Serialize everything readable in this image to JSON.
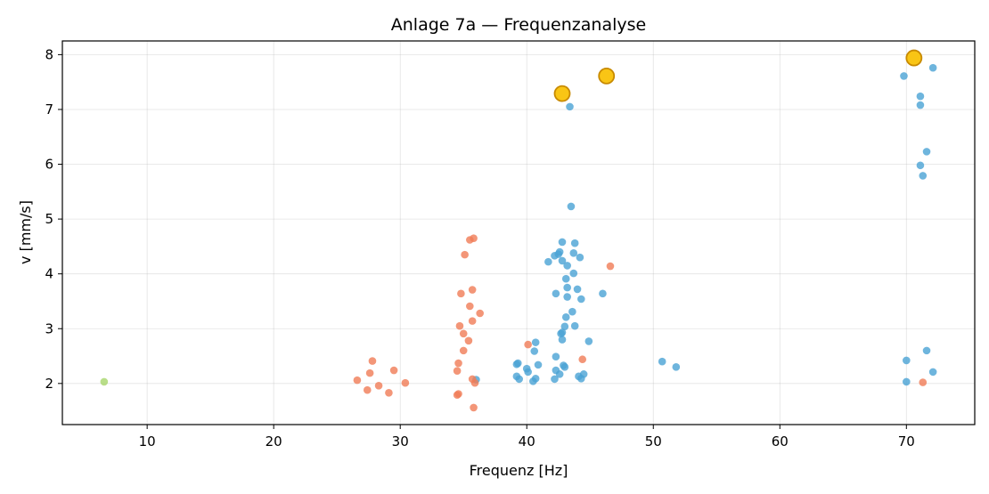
{
  "chart_data": {
    "type": "scatter",
    "title": "Anlage 7a — Frequenzanalyse",
    "xlabel": "Frequenz [Hz]",
    "ylabel": "v [mm/s]",
    "xlim": [
      3.3,
      75.4
    ],
    "ylim": [
      1.25,
      8.25
    ],
    "xticks": [
      10,
      20,
      30,
      40,
      50,
      60,
      70
    ],
    "yticks": [
      2,
      3,
      4,
      5,
      6,
      7,
      8
    ],
    "grid": true,
    "legend": "none",
    "series": [
      {
        "color": "#4aa3d4",
        "points": [
          [
            43.4,
            7.05
          ],
          [
            43.5,
            5.23
          ],
          [
            42.8,
            4.58
          ],
          [
            43.8,
            4.56
          ],
          [
            42.2,
            4.33
          ],
          [
            42.6,
            4.4
          ],
          [
            43.7,
            4.38
          ],
          [
            42.5,
            4.36
          ],
          [
            41.7,
            4.22
          ],
          [
            42.8,
            4.24
          ],
          [
            43.2,
            4.15
          ],
          [
            44.2,
            4.3
          ],
          [
            43.7,
            4.01
          ],
          [
            43.1,
            3.91
          ],
          [
            43.2,
            3.75
          ],
          [
            44.0,
            3.72
          ],
          [
            42.3,
            3.64
          ],
          [
            43.2,
            3.58
          ],
          [
            44.3,
            3.54
          ],
          [
            46.0,
            3.64
          ],
          [
            43.6,
            3.31
          ],
          [
            43.1,
            3.21
          ],
          [
            43.0,
            3.04
          ],
          [
            43.8,
            3.05
          ],
          [
            42.8,
            2.93
          ],
          [
            42.7,
            2.91
          ],
          [
            42.8,
            2.8
          ],
          [
            44.9,
            2.77
          ],
          [
            40.7,
            2.75
          ],
          [
            40.6,
            2.59
          ],
          [
            42.3,
            2.49
          ],
          [
            39.3,
            2.37
          ],
          [
            39.2,
            2.35
          ],
          [
            40.0,
            2.27
          ],
          [
            40.1,
            2.21
          ],
          [
            40.9,
            2.34
          ],
          [
            42.3,
            2.24
          ],
          [
            42.9,
            2.33
          ],
          [
            43.0,
            2.3
          ],
          [
            42.6,
            2.17
          ],
          [
            44.5,
            2.17
          ],
          [
            44.1,
            2.13
          ],
          [
            39.2,
            2.13
          ],
          [
            42.2,
            2.08
          ],
          [
            44.3,
            2.09
          ],
          [
            40.7,
            2.09
          ],
          [
            40.5,
            2.04
          ],
          [
            39.4,
            2.08
          ],
          [
            36.0,
            2.07
          ],
          [
            50.7,
            2.4
          ],
          [
            51.8,
            2.3
          ],
          [
            69.8,
            7.61
          ],
          [
            72.1,
            7.76
          ],
          [
            71.1,
            7.24
          ],
          [
            71.1,
            7.08
          ],
          [
            71.6,
            6.23
          ],
          [
            71.1,
            5.98
          ],
          [
            71.3,
            5.79
          ],
          [
            71.6,
            2.6
          ],
          [
            70.0,
            2.42
          ],
          [
            72.1,
            2.21
          ],
          [
            70.0,
            2.03
          ]
        ]
      },
      {
        "color": "#f07c56",
        "points": [
          [
            35.8,
            4.65
          ],
          [
            35.5,
            4.62
          ],
          [
            35.1,
            4.35
          ],
          [
            46.6,
            4.14
          ],
          [
            35.7,
            3.71
          ],
          [
            34.8,
            3.64
          ],
          [
            35.5,
            3.41
          ],
          [
            36.3,
            3.28
          ],
          [
            35.7,
            3.14
          ],
          [
            34.7,
            3.05
          ],
          [
            35.0,
            2.91
          ],
          [
            35.4,
            2.78
          ],
          [
            40.1,
            2.71
          ],
          [
            35.0,
            2.6
          ],
          [
            44.4,
            2.44
          ],
          [
            27.8,
            2.41
          ],
          [
            34.6,
            2.37
          ],
          [
            29.5,
            2.24
          ],
          [
            34.5,
            2.23
          ],
          [
            27.6,
            2.19
          ],
          [
            35.7,
            2.08
          ],
          [
            26.6,
            2.06
          ],
          [
            30.4,
            2.01
          ],
          [
            35.9,
            2.01
          ],
          [
            71.3,
            2.02
          ],
          [
            28.3,
            1.96
          ],
          [
            27.4,
            1.88
          ],
          [
            29.1,
            1.83
          ],
          [
            34.6,
            1.81
          ],
          [
            34.5,
            1.79
          ],
          [
            35.8,
            1.56
          ]
        ]
      },
      {
        "color": "#a8d66c",
        "points": [
          [
            6.6,
            2.03
          ]
        ]
      }
    ],
    "highlights": {
      "color": "#f9c515",
      "edge_color": "#c88a00",
      "points": [
        [
          42.8,
          7.29
        ],
        [
          46.3,
          7.61
        ],
        [
          70.6,
          7.94
        ]
      ]
    }
  }
}
